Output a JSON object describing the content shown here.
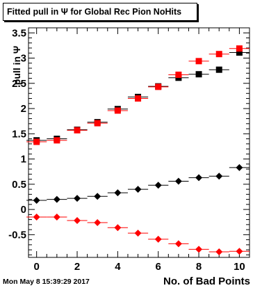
{
  "chart_data": {
    "type": "scatter",
    "title": "Fitted pull in  Ψ  for Global Rec Pion NoHits",
    "xlabel": "No. of Bad Points",
    "ylabel": "pull in  Ψ",
    "xlim": [
      -0.4,
      10.5
    ],
    "ylim": [
      -0.95,
      3.6
    ],
    "x_ticks": [
      0,
      2,
      4,
      6,
      8,
      10
    ],
    "y_ticks": [
      -0.5,
      0,
      0.5,
      1,
      1.5,
      2,
      2.5,
      3,
      3.5
    ],
    "x": [
      0,
      1,
      2,
      3,
      4,
      5,
      6,
      7,
      8,
      9,
      10
    ],
    "series": [
      {
        "marker": "square",
        "color": "#000000",
        "values": [
          1.37,
          1.4,
          1.58,
          1.73,
          1.99,
          2.23,
          2.44,
          2.61,
          2.68,
          2.77,
          3.11
        ]
      },
      {
        "marker": "square",
        "color": "#ff0000",
        "values": [
          1.34,
          1.37,
          1.57,
          1.71,
          1.96,
          2.2,
          2.43,
          2.67,
          2.94,
          3.08,
          3.19
        ]
      },
      {
        "marker": "diamond",
        "color": "#000000",
        "values": [
          0.18,
          0.2,
          0.22,
          0.26,
          0.33,
          0.4,
          0.48,
          0.56,
          0.63,
          0.66,
          0.83
        ]
      },
      {
        "marker": "diamond",
        "color": "#ff0000",
        "values": [
          -0.15,
          -0.15,
          -0.22,
          -0.26,
          -0.36,
          -0.47,
          -0.59,
          -0.68,
          -0.79,
          -0.84,
          -0.83
        ]
      }
    ],
    "grid": false
  },
  "timestamp": "Mon May  8 15:39:29 2017"
}
